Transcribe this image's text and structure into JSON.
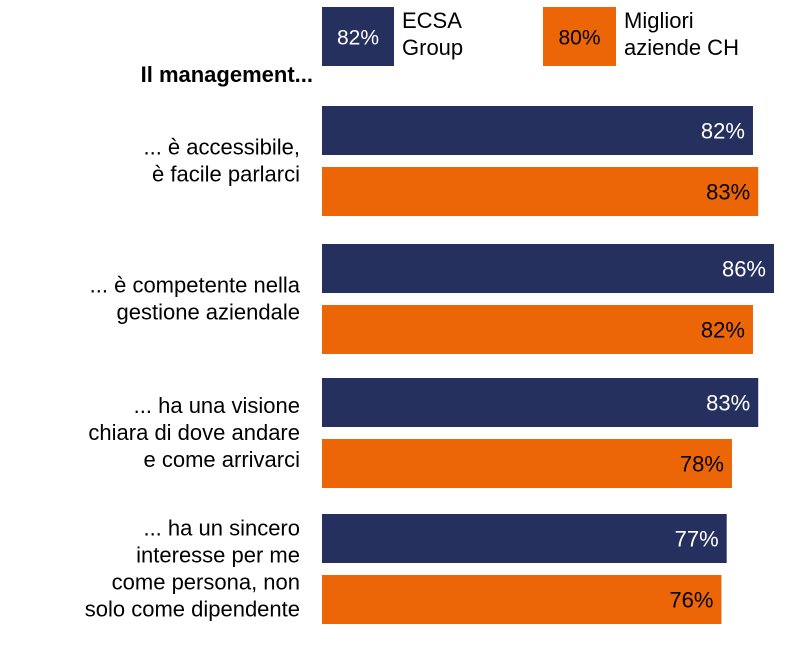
{
  "chart_data": {
    "type": "bar",
    "orientation": "horizontal",
    "subtitle": "Il management...",
    "categories": [
      "... è accessibile,\nè facile parlarci",
      "... è competente nella\ngestione aziendale",
      "... ha una visione\nchiara di dove andare\ne come arrivarci",
      "... ha un sincero\ninteresse per me\ncome persona, non\nsolo come dipendente"
    ],
    "series": [
      {
        "name": "ECSA\nGroup",
        "legend_value": "82%",
        "color": "#26305F",
        "values": [
          82,
          86,
          83,
          77
        ]
      },
      {
        "name": "Migliori\naziende CH",
        "legend_value": "80%",
        "color": "#EC6608",
        "values": [
          83,
          82,
          78,
          76
        ]
      }
    ],
    "value_suffix": "%",
    "xlim": [
      0,
      86
    ],
    "legend_position": "top"
  }
}
